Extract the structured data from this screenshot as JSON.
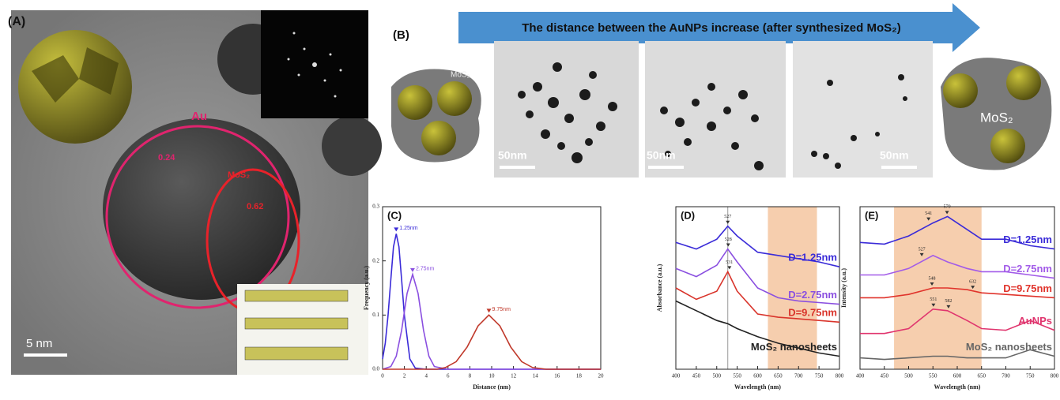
{
  "panel_a": {
    "label": "(A)",
    "au": "Au",
    "au_spacing": "0.24",
    "mos2": "MoS₂",
    "mos2_spacing": "0.62",
    "scale_bar": "5 nm"
  },
  "panel_b": {
    "label": "(B)",
    "arrow_text": "The distance between the AuNPs increase (after synthesized MoS₂)",
    "left_cartoon": "MoS₂",
    "right_cartoon": "MoS₂",
    "scale_bars": [
      "50nm",
      "50nm",
      "50nm"
    ]
  },
  "chart_data": [
    {
      "type": "line",
      "label": "(C)",
      "xlabel": "Distance (nm)",
      "ylabel": "Frequency (a.u.)",
      "xlim": [
        0,
        20
      ],
      "ylim": [
        0,
        0.3
      ],
      "xticks": [
        0,
        2,
        4,
        6,
        8,
        10,
        12,
        14,
        16,
        18,
        20
      ],
      "yticks": [
        {
          "value": 0,
          "label": "0.0"
        },
        0.1,
        0.2,
        0.3
      ],
      "series": [
        {
          "name": "1.25nm",
          "color": "#3a2bd8",
          "x": [
            0,
            0.25,
            0.5,
            0.75,
            1,
            1.25,
            1.5,
            1.75,
            2,
            2.5,
            3,
            4,
            20
          ],
          "values": [
            0.019,
            0.048,
            0.099,
            0.165,
            0.226,
            0.25,
            0.226,
            0.165,
            0.099,
            0.019,
            0.002,
            0,
            0
          ]
        },
        {
          "name": "2.75nm",
          "color": "#8a4fe0",
          "x": [
            0,
            0.75,
            1.25,
            1.75,
            2.25,
            2.75,
            3.25,
            3.75,
            4.25,
            4.75,
            6,
            20
          ],
          "values": [
            0,
            0.005,
            0.024,
            0.072,
            0.14,
            0.175,
            0.14,
            0.072,
            0.024,
            0.005,
            0,
            0
          ]
        },
        {
          "name": "9.75nm",
          "color": "#c0392b",
          "x": [
            0,
            5,
            5.75,
            6.75,
            7.75,
            8.75,
            9.75,
            10.75,
            11.75,
            12.75,
            13.75,
            15,
            20
          ],
          "values": [
            0,
            0,
            0.003,
            0.014,
            0.041,
            0.08,
            0.1,
            0.08,
            0.041,
            0.014,
            0.003,
            0,
            0
          ]
        }
      ]
    },
    {
      "type": "line",
      "label": "(D)",
      "xlabel": "Wavelength (nm)",
      "ylabel": "Absorbance (a.u.)",
      "xlim": [
        400,
        800
      ],
      "ylim": [
        0,
        1
      ],
      "xticks": [
        400,
        450,
        500,
        550,
        600,
        650,
        700,
        750,
        800
      ],
      "highlight": [
        625,
        745
      ],
      "ref_line": 527,
      "series": [
        {
          "name": "D=1.25nm",
          "color": "#3a2bd8",
          "x": [
            400,
            450,
            500,
            527,
            550,
            600,
            650,
            700,
            750,
            800
          ],
          "values": [
            0.78,
            0.74,
            0.8,
            0.88,
            0.82,
            0.72,
            0.7,
            0.68,
            0.66,
            0.63
          ]
        },
        {
          "name": "D=2.75nm",
          "color": "#8a4fe0",
          "x": [
            400,
            450,
            500,
            527,
            550,
            600,
            650,
            700,
            750,
            800
          ],
          "values": [
            0.62,
            0.57,
            0.64,
            0.74,
            0.66,
            0.5,
            0.44,
            0.42,
            0.41,
            0.4
          ]
        },
        {
          "name": "D=9.75nm",
          "color": "#d9342b",
          "x": [
            400,
            450,
            500,
            527,
            550,
            600,
            650,
            700,
            750,
            800
          ],
          "values": [
            0.5,
            0.43,
            0.48,
            0.6,
            0.48,
            0.34,
            0.32,
            0.31,
            0.3,
            0.29
          ]
        },
        {
          "name": "MoS₂ nanosheets",
          "color": "#222222",
          "x": [
            400,
            450,
            500,
            527,
            550,
            600,
            650,
            700,
            750,
            800
          ],
          "values": [
            0.42,
            0.36,
            0.3,
            0.28,
            0.25,
            0.2,
            0.16,
            0.13,
            0.1,
            0.08
          ]
        }
      ],
      "annotations": [
        {
          "text": "527",
          "x": 527,
          "y": 0.88
        },
        {
          "text": "528",
          "x": 528,
          "y": 0.74
        },
        {
          "text": "531",
          "x": 531,
          "y": 0.6
        }
      ]
    },
    {
      "type": "line",
      "label": "(E)",
      "xlabel": "Wavelength (nm)",
      "ylabel": "Intensity (a.u.)",
      "xlim": [
        400,
        800
      ],
      "ylim": [
        0,
        1
      ],
      "xticks": [
        400,
        450,
        500,
        550,
        600,
        650,
        700,
        750,
        800
      ],
      "highlight": [
        470,
        650
      ],
      "series": [
        {
          "name": "D=1.25nm",
          "color": "#3a2bd8",
          "x": [
            400,
            450,
            500,
            550,
            580,
            620,
            650,
            700,
            750,
            800
          ],
          "values": [
            0.78,
            0.77,
            0.82,
            0.9,
            0.94,
            0.86,
            0.8,
            0.8,
            0.76,
            0.74
          ]
        },
        {
          "name": "D=2.75nm",
          "color": "#a25be8",
          "x": [
            400,
            450,
            500,
            550,
            580,
            620,
            650,
            700,
            750,
            800
          ],
          "values": [
            0.58,
            0.58,
            0.62,
            0.7,
            0.66,
            0.62,
            0.6,
            0.6,
            0.58,
            0.56
          ]
        },
        {
          "name": "D=9.75nm",
          "color": "#e0332b",
          "x": [
            400,
            450,
            500,
            550,
            580,
            620,
            650,
            700,
            750,
            800
          ],
          "values": [
            0.44,
            0.44,
            0.46,
            0.5,
            0.5,
            0.49,
            0.47,
            0.46,
            0.45,
            0.44
          ]
        },
        {
          "name": "AuNPs",
          "color": "#e0356e",
          "x": [
            400,
            450,
            500,
            550,
            580,
            620,
            650,
            700,
            750,
            800
          ],
          "values": [
            0.22,
            0.22,
            0.25,
            0.37,
            0.36,
            0.3,
            0.25,
            0.24,
            0.3,
            0.24
          ]
        },
        {
          "name": "MoS₂ nanosheets",
          "color": "#666666",
          "x": [
            400,
            450,
            500,
            550,
            580,
            620,
            650,
            700,
            750,
            800
          ],
          "values": [
            0.07,
            0.06,
            0.07,
            0.08,
            0.08,
            0.07,
            0.07,
            0.07,
            0.12,
            0.08
          ]
        }
      ],
      "annotations": [
        {
          "text": "541",
          "x": 541,
          "y": 0.9
        },
        {
          "text": "579",
          "x": 579,
          "y": 0.94
        },
        {
          "text": "527",
          "x": 527,
          "y": 0.68
        },
        {
          "text": "548",
          "x": 548,
          "y": 0.5
        },
        {
          "text": "632",
          "x": 632,
          "y": 0.48
        },
        {
          "text": "551",
          "x": 551,
          "y": 0.37
        },
        {
          "text": "582",
          "x": 582,
          "y": 0.36
        }
      ]
    }
  ]
}
